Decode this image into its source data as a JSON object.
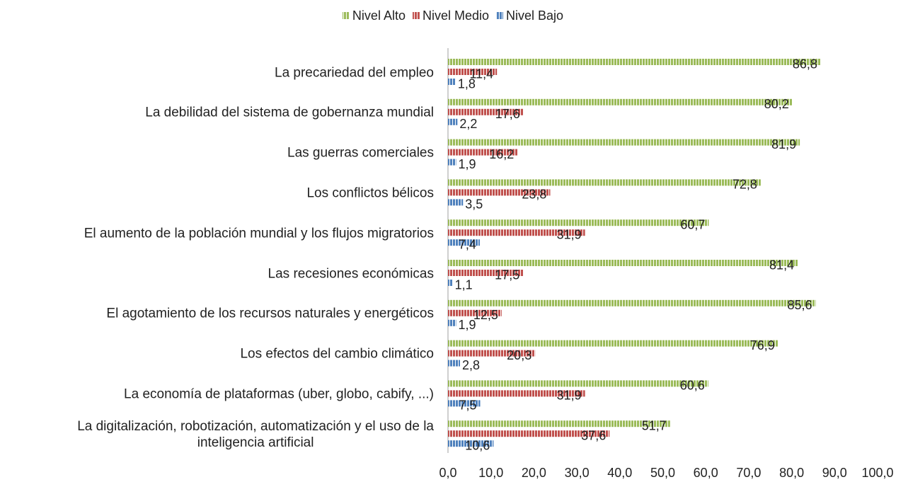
{
  "chart_data": {
    "type": "hbar",
    "categories": [
      "La precariedad del empleo",
      "La debilidad del sistema de gobernanza mundial",
      "Las guerras comerciales",
      "Los conflictos bélicos",
      "El aumento de la población mundial y los flujos migratorios",
      "Las recesiones económicas",
      "El agotamiento de los recursos naturales y energéticos",
      "Los efectos del cambio climático",
      "La economía de plataformas (uber, globo, cabify, ...)",
      "La digitalización, robotización, automatización y el uso de la\ninteligencia artificial"
    ],
    "series": [
      {
        "name": "Nivel Alto",
        "color": "#9bbb59",
        "values": [
          86.8,
          80.2,
          81.9,
          72.8,
          60.7,
          81.4,
          85.6,
          76.9,
          60.6,
          51.7
        ],
        "value_labels": [
          "86,8",
          "80,2",
          "81,9",
          "72,8",
          "60,7",
          "81,4",
          "85,6",
          "76,9",
          "60,6",
          "51,7"
        ]
      },
      {
        "name": "Nivel Medio",
        "color": "#c0504d",
        "values": [
          11.4,
          17.6,
          16.2,
          23.8,
          31.9,
          17.5,
          12.5,
          20.3,
          31.9,
          37.6
        ],
        "value_labels": [
          "11,4",
          "17,6",
          "16,2",
          "23,8",
          "31,9",
          "17,5",
          "12,5",
          "20,3",
          "31,9",
          "37,6"
        ]
      },
      {
        "name": "Nivel Bajo",
        "color": "#4f81bd",
        "values": [
          1.8,
          2.2,
          1.9,
          3.5,
          7.4,
          1.1,
          1.9,
          2.8,
          7.5,
          10.6
        ],
        "value_labels": [
          "1,8",
          "2,2",
          "1,9",
          "3,5",
          "7,4",
          "1,1",
          "1,9",
          "2,8",
          "7,5",
          "10,6"
        ]
      }
    ],
    "xlim": [
      0,
      100
    ],
    "xticks": [
      {
        "value": 0,
        "label": "0,0"
      },
      {
        "value": 10,
        "label": "10,0"
      },
      {
        "value": 20,
        "label": "20,0"
      },
      {
        "value": 30,
        "label": "30,0"
      },
      {
        "value": 40,
        "label": "40,0"
      },
      {
        "value": 50,
        "label": "50,0"
      },
      {
        "value": 60,
        "label": "60,0"
      },
      {
        "value": 70,
        "label": "70,0"
      },
      {
        "value": 80,
        "label": "80,0"
      },
      {
        "value": 90,
        "label": "90,0"
      },
      {
        "value": 100,
        "label": "100,0"
      }
    ],
    "legend": "top",
    "grid": false
  }
}
